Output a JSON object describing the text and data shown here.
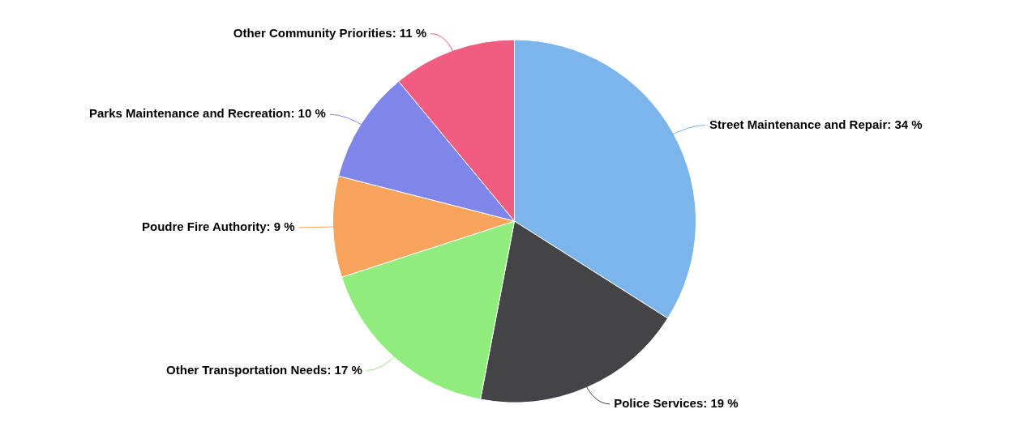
{
  "chart_data": {
    "type": "pie",
    "categories": [
      "Street Maintenance and Repair",
      "Police Services",
      "Other Transportation Needs",
      "Poudre Fire Authority",
      "Parks Maintenance and Recreation",
      "Other Community Priorities"
    ],
    "values": [
      34,
      19,
      17,
      9,
      10,
      11
    ],
    "colors": [
      "#7cb5ec",
      "#434348",
      "#90ed7d",
      "#f7a35c",
      "#8085e9",
      "#f15c80"
    ],
    "value_labels": [
      "34 %",
      "19 %",
      "17 %",
      "9 %",
      "10 %",
      "11 %"
    ],
    "legend": false
  }
}
